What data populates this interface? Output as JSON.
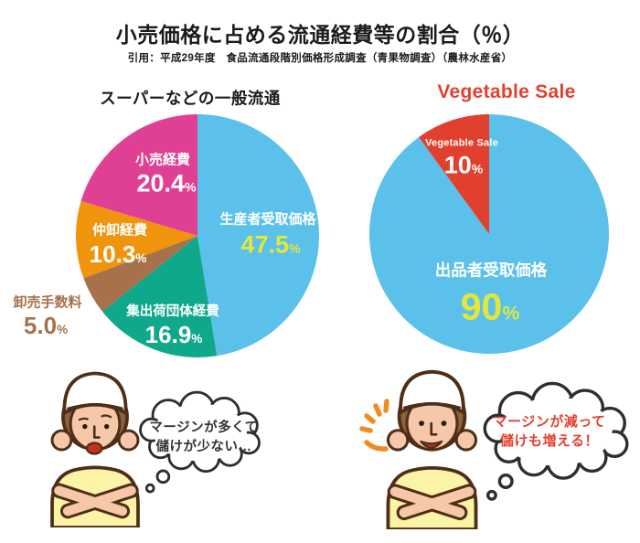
{
  "header": {
    "title": "小売価格に占める流通経費等の割合（％）",
    "subtitle": "引用：平成29年度　食品流通段階別価格形成調査（青果物調査）（農林水産省）"
  },
  "colors": {
    "producer_blue": "#5bc1ea",
    "retail_pink": "#e04093",
    "wholesale_orange": "#f0930d",
    "fee_brown": "#a7714b",
    "shipping_teal": "#10a88a",
    "sale_red": "#e2402e",
    "value_yellow": "#e3e73b"
  },
  "chart_data": [
    {
      "type": "pie",
      "title": "スーパーなどの一般流通",
      "start_angle_deg": 0,
      "direction": "clockwise",
      "unit": "%",
      "slices": [
        {
          "label": "生産者受取価格",
          "value": 47.5,
          "display": "47.5",
          "color": "#5bc1ea",
          "label_color": "#ffffff",
          "value_color": "#e3e73b"
        },
        {
          "label": "集出荷団体経費",
          "value": 16.9,
          "display": "16.9",
          "color": "#10a88a",
          "label_color": "#ffffff",
          "value_color": "#ffffff"
        },
        {
          "label": "卸売手数料",
          "value": 5.0,
          "display": "5.0",
          "color": "#a7714b",
          "label_color": "#a7714b",
          "value_color": "#a7714b",
          "label_outside": true
        },
        {
          "label": "仲卸経費",
          "value": 10.3,
          "display": "10.3",
          "color": "#f0930d",
          "label_color": "#ffffff",
          "value_color": "#ffffff"
        },
        {
          "label": "小売経費",
          "value": 20.4,
          "display": "20.4",
          "color": "#e04093",
          "label_color": "#ffffff",
          "value_color": "#ffffff"
        }
      ]
    },
    {
      "type": "pie",
      "title": "Vegetable Sale",
      "start_angle_deg": 0,
      "direction": "clockwise",
      "unit": "%",
      "slices": [
        {
          "label": "出品者受取価格",
          "value": 90,
          "display": "90",
          "color": "#5bc1ea",
          "label_color": "#ffffff",
          "value_color": "#e3e73b"
        },
        {
          "label": "Vegetable Sale",
          "value": 10,
          "display": "10",
          "color": "#e2402e",
          "label_color": "#ffffff",
          "value_color": "#ffffff"
        }
      ]
    }
  ],
  "captions": {
    "left_bubble": {
      "line1": "マージンが多くて",
      "line2": "儲けが少ない…",
      "color": "#333333"
    },
    "right_bubble": {
      "line1": "マージンが減って",
      "line2": "儲けも増える！",
      "color": "#e2402e"
    }
  }
}
